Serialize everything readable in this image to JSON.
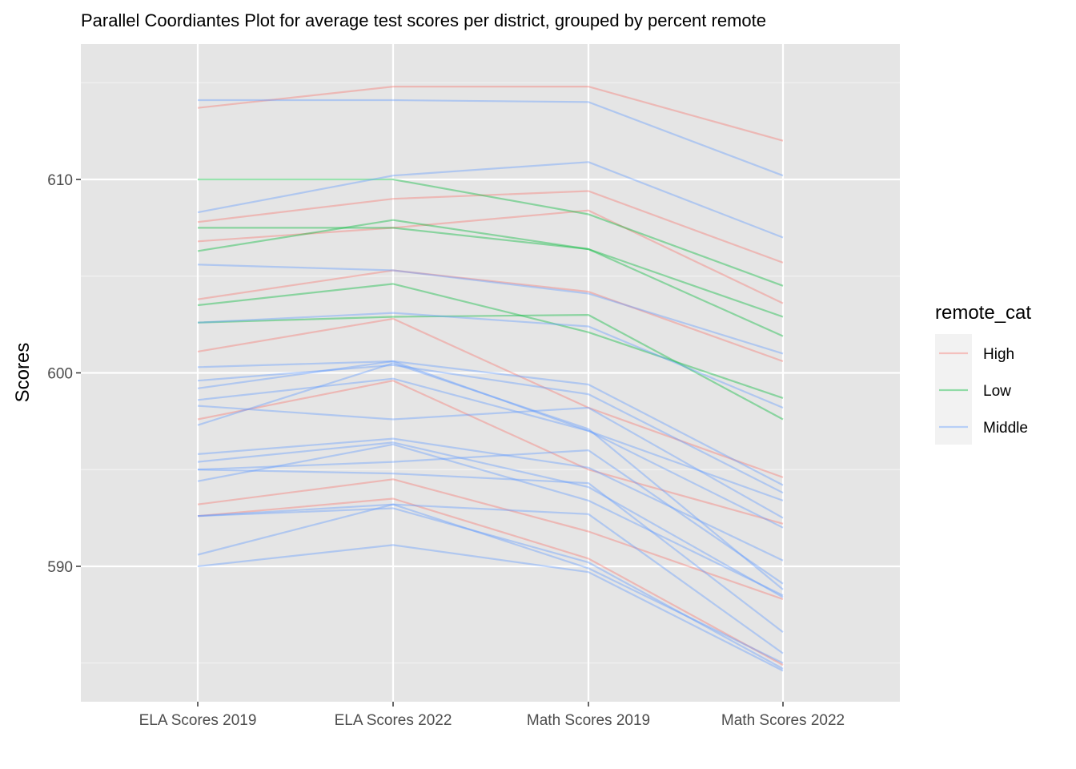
{
  "chart_data": {
    "type": "line",
    "title": "Parallel Coordiantes Plot for average test scores per district, grouped by percent remote",
    "xlabel": "",
    "ylabel": "Scores",
    "categories": [
      "ELA Scores 2019",
      "ELA Scores 2022",
      "Math Scores 2019",
      "Math Scores 2022"
    ],
    "ylim": [
      583.0,
      617.0
    ],
    "yticks": [
      590,
      600,
      610
    ],
    "grid": true,
    "legend": {
      "title": "remote_cat",
      "position": "right",
      "entries": [
        {
          "label": "High",
          "color": "#F8766D"
        },
        {
          "label": "Low",
          "color": "#00BA38"
        },
        {
          "label": "Middle",
          "color": "#619CFF"
        }
      ]
    },
    "series": [
      {
        "group": "High",
        "values": [
          613.7,
          614.8,
          614.8,
          612.0
        ]
      },
      {
        "group": "High",
        "values": [
          607.8,
          609.0,
          609.4,
          605.7
        ]
      },
      {
        "group": "High",
        "values": [
          606.8,
          607.5,
          608.4,
          603.6
        ]
      },
      {
        "group": "High",
        "values": [
          603.8,
          605.3,
          604.2,
          600.6
        ]
      },
      {
        "group": "High",
        "values": [
          601.1,
          602.8,
          598.2,
          594.6
        ]
      },
      {
        "group": "High",
        "values": [
          597.6,
          599.6,
          595.0,
          592.2
        ]
      },
      {
        "group": "High",
        "values": [
          593.2,
          594.5,
          591.8,
          588.3
        ]
      },
      {
        "group": "High",
        "values": [
          592.6,
          593.5,
          590.4,
          584.9
        ]
      },
      {
        "group": "Low",
        "values": [
          610.0,
          610.0,
          608.2,
          604.5
        ]
      },
      {
        "group": "Low",
        "values": [
          607.5,
          607.5,
          606.4,
          602.9
        ]
      },
      {
        "group": "Low",
        "values": [
          606.3,
          607.9,
          606.4,
          601.9
        ]
      },
      {
        "group": "Low",
        "values": [
          603.5,
          604.6,
          602.1,
          598.7
        ]
      },
      {
        "group": "Low",
        "values": [
          602.6,
          602.9,
          603.0,
          597.6
        ]
      },
      {
        "group": "Middle",
        "values": [
          614.1,
          614.1,
          614.0,
          610.2
        ]
      },
      {
        "group": "Middle",
        "values": [
          608.3,
          610.2,
          610.9,
          607.0
        ]
      },
      {
        "group": "Middle",
        "values": [
          605.6,
          605.3,
          604.1,
          601.0
        ]
      },
      {
        "group": "Middle",
        "values": [
          602.6,
          603.1,
          602.4,
          598.2
        ]
      },
      {
        "group": "Middle",
        "values": [
          600.3,
          600.6,
          599.4,
          594.2
        ]
      },
      {
        "group": "Middle",
        "values": [
          599.6,
          600.4,
          598.9,
          593.8
        ]
      },
      {
        "group": "Middle",
        "values": [
          599.2,
          600.6,
          597.0,
          593.4
        ]
      },
      {
        "group": "Middle",
        "values": [
          598.6,
          599.7,
          597.0,
          592.0
        ]
      },
      {
        "group": "Middle",
        "values": [
          598.3,
          597.6,
          598.2,
          592.5
        ]
      },
      {
        "group": "Middle",
        "values": [
          597.3,
          600.5,
          597.1,
          588.8
        ]
      },
      {
        "group": "Middle",
        "values": [
          595.8,
          596.6,
          595.1,
          590.3
        ]
      },
      {
        "group": "Middle",
        "values": [
          595.4,
          596.4,
          594.1,
          588.4
        ]
      },
      {
        "group": "Middle",
        "values": [
          595.0,
          595.4,
          596.0,
          589.1
        ]
      },
      {
        "group": "Middle",
        "values": [
          595.0,
          594.8,
          594.3,
          586.6
        ]
      },
      {
        "group": "Middle",
        "values": [
          594.4,
          596.3,
          593.4,
          588.5
        ]
      },
      {
        "group": "Middle",
        "values": [
          592.6,
          593.2,
          592.7,
          585.5
        ]
      },
      {
        "group": "Middle",
        "values": [
          592.6,
          593.0,
          590.2,
          584.7
        ]
      },
      {
        "group": "Middle",
        "values": [
          590.6,
          593.2,
          589.9,
          585.0
        ]
      },
      {
        "group": "Middle",
        "values": [
          590.0,
          591.1,
          589.7,
          584.6
        ]
      }
    ]
  }
}
